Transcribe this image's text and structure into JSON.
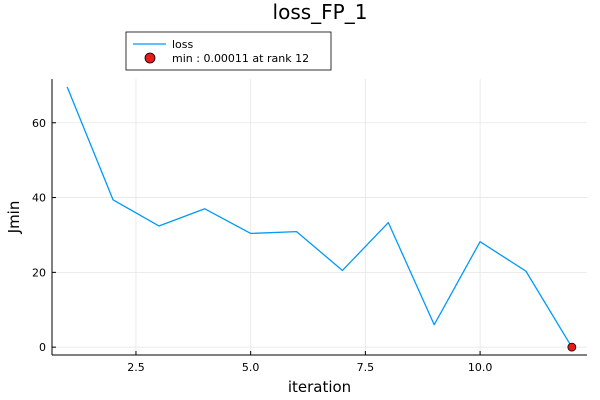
{
  "chart_data": {
    "type": "line",
    "title": "loss_FP_1",
    "xlabel": "iteration",
    "ylabel": "Jmin",
    "xlim": [
      0.67,
      12.33
    ],
    "ylim": [
      -2.1,
      71.7
    ],
    "x_ticks": [
      2.5,
      5.0,
      7.5,
      10.0
    ],
    "x_tick_labels": [
      "2.5",
      "5.0",
      "7.5",
      "10.0"
    ],
    "y_ticks": [
      0,
      20,
      40,
      60
    ],
    "y_tick_labels": [
      "0",
      "20",
      "40",
      "60"
    ],
    "grid": true,
    "legend_position": "top-left",
    "series": [
      {
        "name": "loss",
        "color": "#009AFA",
        "x": [
          1,
          2,
          3,
          4,
          5,
          6,
          7,
          8,
          9,
          10,
          11,
          12
        ],
        "y": [
          69.6,
          39.4,
          32.4,
          37.0,
          30.4,
          30.9,
          20.5,
          33.3,
          6.0,
          28.2,
          20.3,
          0.00011
        ]
      }
    ],
    "marker": {
      "name": "min : 0.00011 at rank 12",
      "x": 12,
      "y": 0.00011,
      "color": "#E81B1B"
    }
  }
}
